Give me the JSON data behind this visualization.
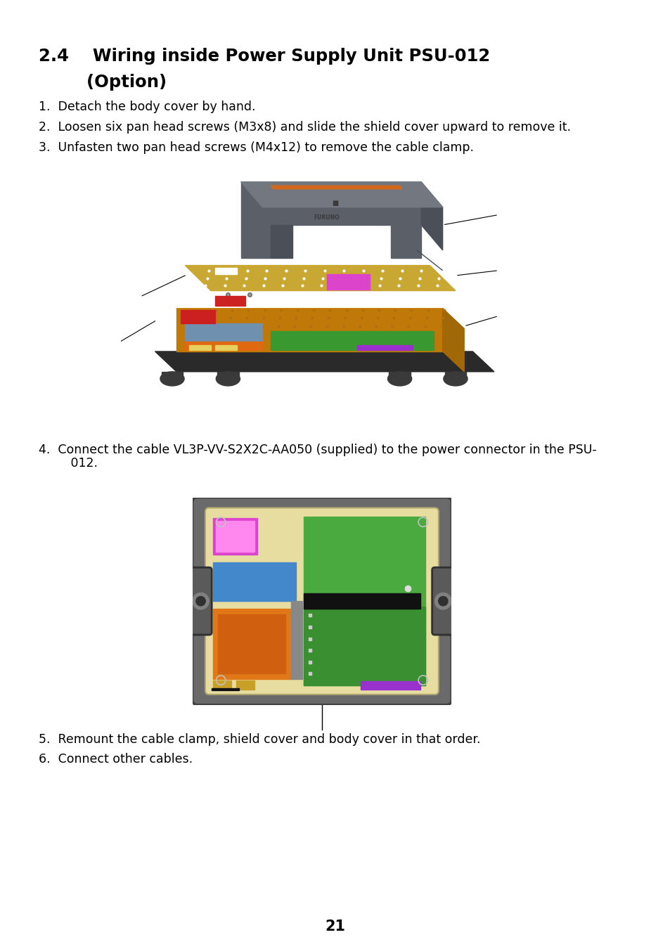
{
  "bg_color": "#ffffff",
  "page_number": "21",
  "title_line1": "2.4    Wiring inside Power Supply Unit PSU-012",
  "title_line2": "        (Option)",
  "step1": "1.  Detach the body cover by hand.",
  "step2": "2.  Loosen six pan head screws (M3x8) and slide the shield cover upward to remove it.",
  "step3": "3.  Unfasten two pan head screws (M4x12) to remove the cable clamp.",
  "step4a": "4.  Connect the cable VL3P-VV-S2X2C-AA050 (supplied) to the power connector in the PSU-",
  "step4b": "     012.",
  "step5": "5.  Remount the cable clamp, shield cover and body cover in that order.",
  "step6": "6.  Connect other cables.",
  "title_fontsize": 17.5,
  "body_fontsize": 12.5,
  "page_num_fontsize": 15
}
